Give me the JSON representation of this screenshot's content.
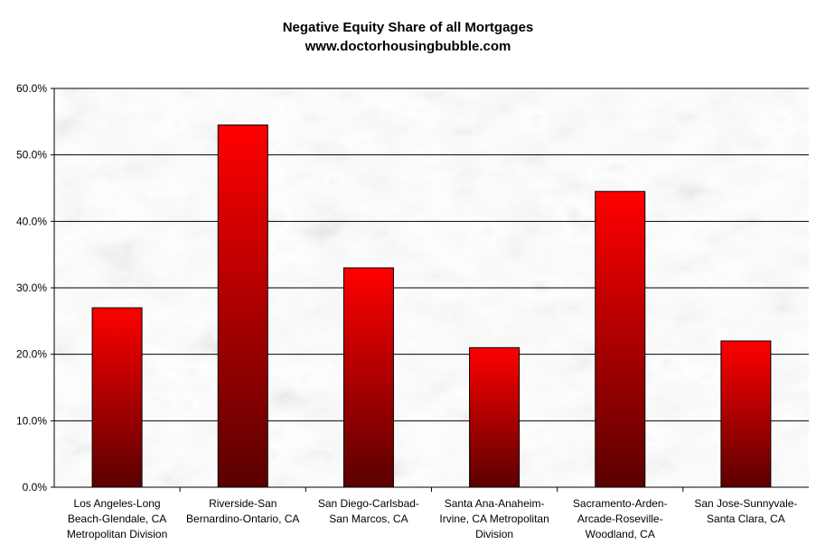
{
  "chart_data": {
    "type": "bar",
    "title": "Negative Equity Share of all Mortgages",
    "subtitle": "www.doctorhousingbubble.com",
    "categories": [
      [
        "Los Angeles-Long",
        "Beach-Glendale, CA",
        "Metropolitan Division"
      ],
      [
        "Riverside-San",
        "Bernardino-Ontario, CA"
      ],
      [
        "San Diego-Carlsbad-",
        "San Marcos, CA"
      ],
      [
        "Santa Ana-Anaheim-",
        "Irvine, CA Metropolitan",
        "Division"
      ],
      [
        "Sacramento-Arden-",
        "Arcade-Roseville-",
        "Woodland, CA"
      ],
      [
        "San Jose-Sunnyvale-",
        "Santa Clara, CA"
      ]
    ],
    "values": [
      27.0,
      54.5,
      33.0,
      21.0,
      44.5,
      22.0
    ],
    "ylim": [
      0,
      60
    ],
    "yticks": [
      "0.0%",
      "10.0%",
      "20.0%",
      "30.0%",
      "40.0%",
      "50.0%",
      "60.0%"
    ],
    "grid": true,
    "colors": {
      "bar_top": "#ff0000",
      "bar_bottom": "#5a0000",
      "grid": "#000000"
    }
  }
}
